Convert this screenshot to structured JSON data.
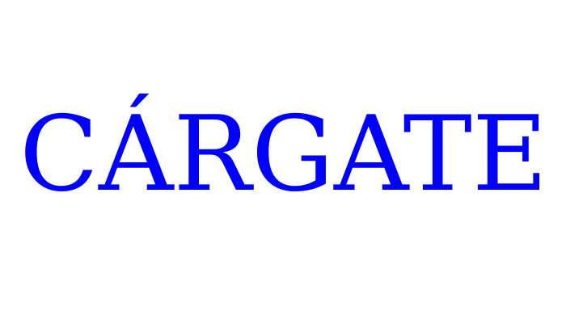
{
  "text": {
    "word": "CÁRGATE"
  },
  "colors": {
    "background": "#ffffff",
    "text": "#0000ff"
  }
}
